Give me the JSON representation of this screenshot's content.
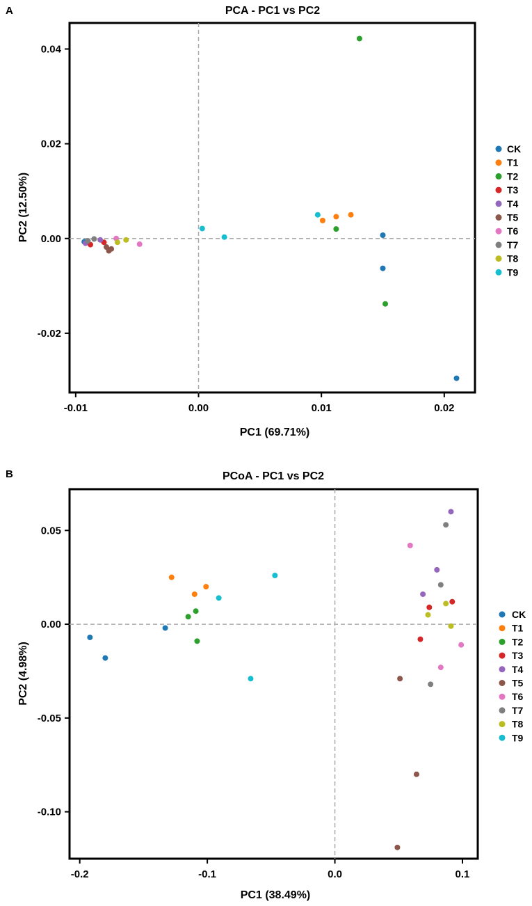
{
  "chart_data": [
    {
      "type": "scatter",
      "panel": "A",
      "title": "PCA - PC1 vs PC2",
      "xlabel": "PC1  (69.71%)",
      "ylabel": "PC2  (12.50%)",
      "xlim": [
        -0.0105,
        0.0225
      ],
      "ylim": [
        -0.0325,
        0.0455
      ],
      "xticks": [
        -0.01,
        0.0,
        0.01,
        0.02
      ],
      "xtick_labels": [
        "-0.01",
        "0.00",
        "0.01",
        "0.02"
      ],
      "yticks": [
        -0.02,
        0.0,
        0.02,
        0.04
      ],
      "ytick_labels": [
        "-0.02",
        "0.00",
        "0.02",
        "0.04"
      ],
      "reference_lines": {
        "x": 0,
        "y": 0
      },
      "legend": "right",
      "series": [
        {
          "name": "CK",
          "color": "#1f77b4",
          "points": [
            [
              -0.0093,
              -0.0007
            ],
            [
              0.015,
              0.0007
            ],
            [
              0.015,
              -0.0063
            ],
            [
              0.021,
              -0.0295
            ]
          ]
        },
        {
          "name": "T1",
          "color": "#ff7f0e",
          "points": [
            [
              0.0101,
              0.0038
            ],
            [
              0.0112,
              0.0046
            ],
            [
              0.0124,
              0.005
            ]
          ]
        },
        {
          "name": "T2",
          "color": "#2ca02c",
          "points": [
            [
              0.0112,
              0.002
            ],
            [
              0.0131,
              0.0422
            ],
            [
              0.0152,
              -0.0138
            ]
          ]
        },
        {
          "name": "T3",
          "color": "#d62728",
          "points": [
            [
              -0.0088,
              -0.0013
            ],
            [
              -0.0077,
              -0.0008
            ]
          ]
        },
        {
          "name": "T4",
          "color": "#9467bd",
          "points": [
            [
              -0.0092,
              -0.001
            ],
            [
              -0.008,
              -0.0003
            ]
          ]
        },
        {
          "name": "T5",
          "color": "#8c564b",
          "points": [
            [
              -0.0075,
              -0.0018
            ],
            [
              -0.0073,
              -0.0026
            ],
            [
              -0.0071,
              -0.0022
            ]
          ]
        },
        {
          "name": "T6",
          "color": "#e377c2",
          "points": [
            [
              -0.0067,
              0.0
            ],
            [
              -0.0048,
              -0.0012
            ]
          ]
        },
        {
          "name": "T7",
          "color": "#7f7f7f",
          "points": [
            [
              -0.0085,
              -0.0001
            ],
            [
              -0.009,
              -0.0005
            ]
          ]
        },
        {
          "name": "T8",
          "color": "#bcbd22",
          "points": [
            [
              -0.0066,
              -0.0008
            ],
            [
              -0.0059,
              -0.0003
            ]
          ]
        },
        {
          "name": "T9",
          "color": "#17becf",
          "points": [
            [
              0.0003,
              0.0021
            ],
            [
              0.0021,
              0.0003
            ],
            [
              0.0097,
              0.005
            ]
          ]
        }
      ]
    },
    {
      "type": "scatter",
      "panel": "B",
      "title": "PCoA - PC1 vs PC2",
      "xlabel": "PC1  (38.49%)",
      "ylabel": "PC2  (4.98%)",
      "xlim": [
        -0.208,
        0.112
      ],
      "ylim": [
        -0.125,
        0.072
      ],
      "xticks": [
        -0.2,
        -0.1,
        0.0,
        0.1
      ],
      "xtick_labels": [
        "-0.2",
        "-0.1",
        "0.0",
        "0.1"
      ],
      "yticks": [
        -0.1,
        -0.05,
        0.0,
        0.05
      ],
      "ytick_labels": [
        "-0.10",
        "-0.05",
        "0.00",
        "0.05"
      ],
      "reference_lines": {
        "x": 0,
        "y": 0
      },
      "legend": "right",
      "series": [
        {
          "name": "CK",
          "color": "#1f77b4",
          "points": [
            [
              -0.192,
              -0.007
            ],
            [
              -0.18,
              -0.018
            ],
            [
              -0.133,
              -0.002
            ]
          ]
        },
        {
          "name": "T1",
          "color": "#ff7f0e",
          "points": [
            [
              -0.128,
              0.025
            ],
            [
              -0.11,
              0.016
            ],
            [
              -0.101,
              0.02
            ]
          ]
        },
        {
          "name": "T2",
          "color": "#2ca02c",
          "points": [
            [
              -0.115,
              0.004
            ],
            [
              -0.109,
              0.007
            ],
            [
              -0.108,
              -0.009
            ]
          ]
        },
        {
          "name": "T3",
          "color": "#d62728",
          "points": [
            [
              0.067,
              -0.008
            ],
            [
              0.074,
              0.009
            ],
            [
              0.092,
              0.012
            ]
          ]
        },
        {
          "name": "T4",
          "color": "#9467bd",
          "points": [
            [
              0.069,
              0.016
            ],
            [
              0.08,
              0.029
            ],
            [
              0.091,
              0.06
            ]
          ]
        },
        {
          "name": "T5",
          "color": "#8c564b",
          "points": [
            [
              0.049,
              -0.119
            ],
            [
              0.051,
              -0.029
            ],
            [
              0.064,
              -0.08
            ]
          ]
        },
        {
          "name": "T6",
          "color": "#e377c2",
          "points": [
            [
              0.059,
              0.042
            ],
            [
              0.083,
              -0.023
            ],
            [
              0.099,
              -0.011
            ]
          ]
        },
        {
          "name": "T7",
          "color": "#7f7f7f",
          "points": [
            [
              0.075,
              -0.032
            ],
            [
              0.083,
              0.021
            ],
            [
              0.087,
              0.053
            ]
          ]
        },
        {
          "name": "T8",
          "color": "#bcbd22",
          "points": [
            [
              0.073,
              0.005
            ],
            [
              0.087,
              0.011
            ],
            [
              0.091,
              -0.001
            ]
          ]
        },
        {
          "name": "T9",
          "color": "#17becf",
          "points": [
            [
              -0.091,
              0.014
            ],
            [
              -0.066,
              -0.029
            ],
            [
              -0.047,
              0.026
            ]
          ]
        }
      ]
    }
  ]
}
